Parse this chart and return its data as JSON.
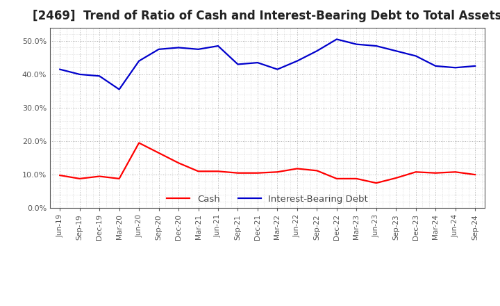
{
  "title": "[2469]  Trend of Ratio of Cash and Interest-Bearing Debt to Total Assets",
  "labels": [
    "Jun-19",
    "Sep-19",
    "Dec-19",
    "Mar-20",
    "Jun-20",
    "Sep-20",
    "Dec-20",
    "Mar-21",
    "Jun-21",
    "Sep-21",
    "Dec-21",
    "Mar-22",
    "Jun-22",
    "Sep-22",
    "Dec-22",
    "Mar-23",
    "Jun-23",
    "Sep-23",
    "Dec-23",
    "Mar-24",
    "Jun-24",
    "Sep-24"
  ],
  "cash": [
    9.8,
    8.8,
    9.5,
    8.8,
    19.5,
    16.5,
    13.5,
    11.0,
    11.0,
    10.5,
    10.5,
    10.8,
    11.8,
    11.2,
    8.8,
    8.8,
    7.5,
    9.0,
    10.8,
    10.5,
    10.8,
    10.0
  ],
  "ibd": [
    41.5,
    40.0,
    39.5,
    35.5,
    44.0,
    47.5,
    48.0,
    47.5,
    48.5,
    43.0,
    43.5,
    41.5,
    44.0,
    47.0,
    50.5,
    49.0,
    48.5,
    47.0,
    45.5,
    42.5,
    42.0,
    42.5
  ],
  "cash_color": "#ff0000",
  "ibd_color": "#0000cc",
  "background_color": "#ffffff",
  "plot_bg_color": "#ffffff",
  "grid_color": "#999999",
  "ylim": [
    0,
    54
  ],
  "yticks": [
    0,
    10,
    20,
    30,
    40,
    50
  ],
  "title_fontsize": 12,
  "tick_color": "#555555",
  "legend_labels": [
    "Cash",
    "Interest-Bearing Debt"
  ],
  "line_width": 1.6
}
